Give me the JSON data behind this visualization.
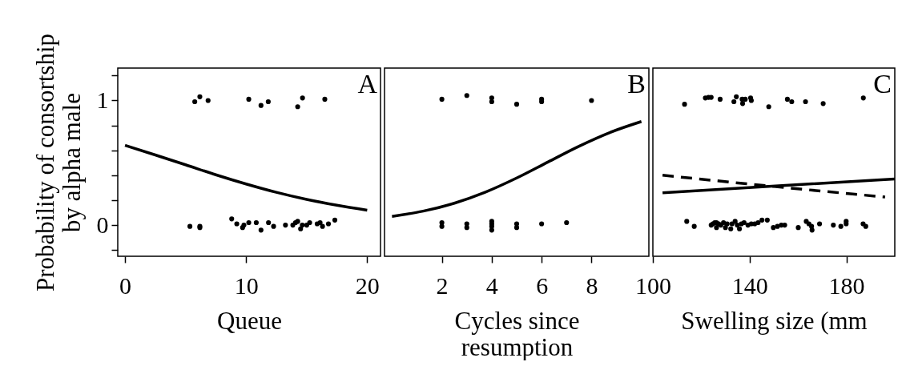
{
  "chart_data": [
    {
      "type": "scatter",
      "xlabel": "Queue",
      "ylabel": "Probability of consortship by alpha male",
      "annotations": [
        "A"
      ],
      "xlim": [
        -0.6,
        21.1
      ],
      "xticks": [
        0,
        10,
        20
      ],
      "ylim": [
        -0.25,
        1.26
      ],
      "yticks": [
        {
          "value": -0.2,
          "label": null
        },
        0,
        {
          "value": 0.2,
          "label": null
        },
        {
          "value": 0.4,
          "label": null
        },
        {
          "value": 0.6,
          "label": null
        },
        {
          "value": 0.8,
          "label": null
        },
        1,
        {
          "value": 1.2,
          "label": null
        }
      ],
      "series": [
        {
          "marker": "circle",
          "color": "#000000",
          "x": [
            5.76,
            6.18,
            6.86,
            10.22,
            11.23,
            11.83,
            14.26,
            14.66,
            16.5,
            5.36,
            6.18,
            6.18,
            8.81,
            9.23,
            9.71,
            9.82,
            10.22,
            10.84,
            11.23,
            11.85,
            12.27,
            13.25,
            13.86,
            14.08,
            14.26,
            14.5,
            14.64,
            15.01,
            15.25,
            15.87,
            16.11,
            16.31,
            16.8,
            17.33
          ],
          "values": [
            0.99,
            1.03,
            1.0,
            1.01,
            0.96,
            0.99,
            0.95,
            1.02,
            1.01,
            -0.01,
            -0.01,
            -0.02,
            0.05,
            0.01,
            -0.02,
            0,
            0.02,
            0.02,
            -0.04,
            0.02,
            -0.01,
            0,
            0,
            0.02,
            0.03,
            -0.03,
            0,
            0,
            0.02,
            0.01,
            0.02,
            -0.01,
            0.01,
            0.04
          ]
        },
        {
          "type": "line",
          "color": "#000000",
          "x": [
            0,
            2.5,
            5,
            7.5,
            10,
            12.5,
            15,
            17.5,
            20
          ],
          "values": [
            0.64,
            0.563,
            0.484,
            0.404,
            0.33,
            0.263,
            0.206,
            0.159,
            0.12
          ]
        }
      ]
    },
    {
      "type": "scatter",
      "xlabel": "Cycles since resumption",
      "annotations": [
        "B"
      ],
      "tick_labels": "x",
      "xlim": [
        -0.3,
        10.3
      ],
      "xticks": [
        2,
        4,
        6,
        8
      ],
      "ylim": [
        -0.25,
        1.26
      ],
      "series": [
        {
          "marker": "circle",
          "color": "#000000",
          "x": [
            2,
            3,
            4,
            4,
            5,
            6,
            6,
            8,
            2,
            2,
            3,
            3,
            4,
            4,
            4,
            4,
            5,
            5,
            6,
            7
          ],
          "values": [
            1.01,
            1.04,
            1.02,
            0.99,
            0.97,
            1.01,
            0.99,
            1.0,
            0.02,
            -0.01,
            0.01,
            -0.02,
            0.03,
            0.01,
            -0.01,
            -0.04,
            0.01,
            -0.02,
            0.01,
            0.02
          ]
        },
        {
          "type": "line",
          "color": "#000000",
          "x": [
            0,
            1.25,
            2.5,
            3.75,
            5,
            6.25,
            7.5,
            8.75,
            10
          ],
          "values": [
            0.07,
            0.112,
            0.176,
            0.265,
            0.378,
            0.506,
            0.633,
            0.744,
            0.831
          ]
        }
      ]
    },
    {
      "type": "scatter",
      "xlabel": "Swelling size (mm",
      "annotations": [
        "C"
      ],
      "tick_labels": "x",
      "xlim": [
        100,
        200
      ],
      "xticks": [
        100,
        140,
        180
      ],
      "ylim": [
        -0.25,
        1.26
      ],
      "series": [
        {
          "marker": "circle",
          "color": "#000000",
          "x": [
            113.1,
            121.7,
            123.0,
            124.1,
            127.8,
            136.9,
            137.1,
            138.2,
            140.7,
            170.4,
            114.0,
            117.1,
            124.1,
            124.8,
            125.6,
            126.3,
            127.2,
            128.1,
            129.2,
            130.0,
            130.7,
            132.2,
            132.7,
            134.0,
            134.9,
            135.8,
            136.6,
            137.7,
            139.3,
            147.3
          ],
          "values": [
            0.97,
            1.02,
            1.025,
            1.025,
            1.01,
            1.01,
            0.975,
            1.01,
            1.0,
            0.975,
            0.03,
            -0.01,
            0,
            0.01,
            0.02,
            0.02,
            0.01,
            0,
            0.02,
            -0.02,
            0.01,
            -0.03,
            0.01,
            0.03,
            0,
            -0.03,
            0.01,
            0.02,
            0,
            0.04
          ]
        },
        {
          "marker": "circle",
          "color": "#000000",
          "x": [
            133.5,
            134.5,
            140.4,
            147.9,
            155.6,
            157.4,
            163.1,
            187.0,
            126.3,
            140.7,
            142.1,
            143.5,
            145.1,
            149.8,
            151.5,
            153.1,
            154.5,
            160.1,
            163.4,
            164.5,
            165.6,
            165.8,
            168.9,
            174.6,
            177.7,
            179.9,
            179.9,
            186.9,
            188.0
          ],
          "values": [
            0.99,
            1.03,
            1.02,
            0.95,
            1.01,
            0.99,
            0.99,
            1.02,
            -0.02,
            0.01,
            0.01,
            0.02,
            0.04,
            -0.02,
            -0.01,
            0,
            0,
            -0.02,
            0.03,
            0.01,
            -0.01,
            -0.04,
            0.01,
            0,
            -0.01,
            0.03,
            0.01,
            0.01,
            -0.01
          ]
        },
        {
          "type": "line",
          "color": "#000000",
          "x": [
            104,
            152,
            200
          ],
          "values": [
            0.26,
            0.315,
            0.37
          ]
        },
        {
          "type": "line",
          "color": "#000000",
          "line_style": "dashed",
          "x": [
            104,
            150,
            196
          ],
          "values": [
            0.4,
            0.31,
            0.225
          ]
        }
      ]
    }
  ]
}
